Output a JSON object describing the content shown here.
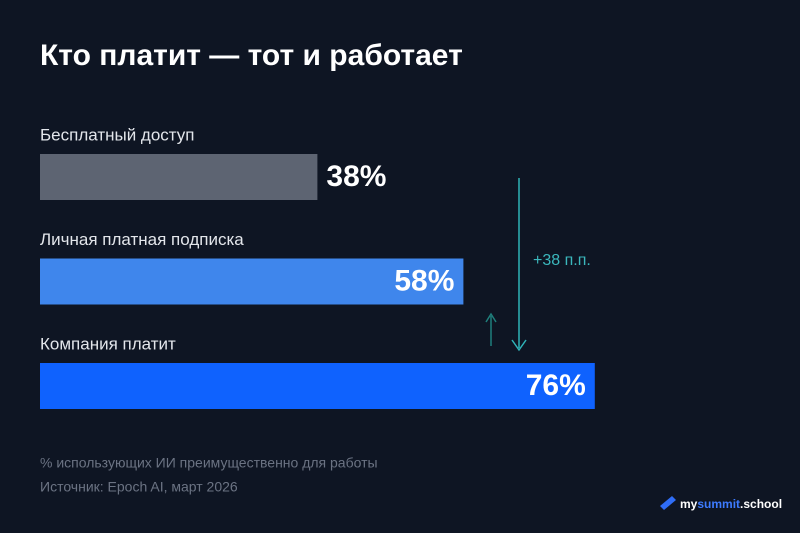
{
  "chart_data": {
    "type": "hbar",
    "title": "Кто платит — тот и работает",
    "categories": [
      "Бесплатный доступ",
      "Личная платная подписка",
      "Компания платит"
    ],
    "series": [
      {
        "values": [
          38,
          58,
          76
        ],
        "value_labels": [
          "38%",
          "58%",
          "76%"
        ],
        "colors": [
          "#5d6472",
          "#3f86ec",
          "#0f62fe"
        ]
      }
    ],
    "xlim": [
      0,
      100
    ],
    "annotation": "+38 п.п.",
    "footnote": "% использующих ИИ преимущественно для работы",
    "source": "Источник: Epoch AI, март 2026",
    "logo_parts": [
      "my",
      "summit",
      ".school"
    ]
  }
}
